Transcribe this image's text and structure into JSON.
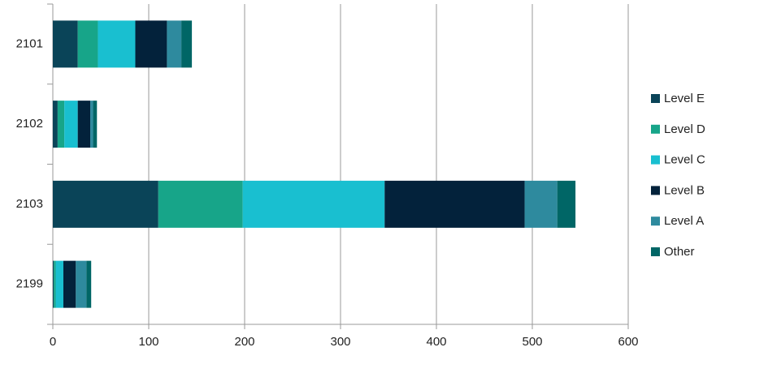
{
  "chart_data": {
    "type": "bar",
    "orientation": "horizontal",
    "stacked": true,
    "categories": [
      "2101",
      "2102",
      "2103",
      "2199"
    ],
    "series": [
      {
        "name": "Level E",
        "color": "#0a4458",
        "values": [
          26,
          5,
          110,
          1
        ]
      },
      {
        "name": "Level D",
        "color": "#17a589",
        "values": [
          21,
          7,
          88,
          2
        ]
      },
      {
        "name": "Level C",
        "color": "#19bfd0",
        "values": [
          39,
          14,
          148,
          8
        ]
      },
      {
        "name": "Level B",
        "color": "#03223b",
        "values": [
          33,
          13,
          146,
          13
        ]
      },
      {
        "name": "Level A",
        "color": "#2e8a9e",
        "values": [
          15,
          3,
          34,
          11
        ]
      },
      {
        "name": "Other",
        "color": "#006666",
        "values": [
          11,
          4,
          19,
          5
        ]
      }
    ],
    "xlim": [
      0,
      600
    ],
    "xticks": [
      0,
      100,
      200,
      300,
      400,
      500,
      600
    ],
    "grid": true,
    "legend": "right"
  }
}
